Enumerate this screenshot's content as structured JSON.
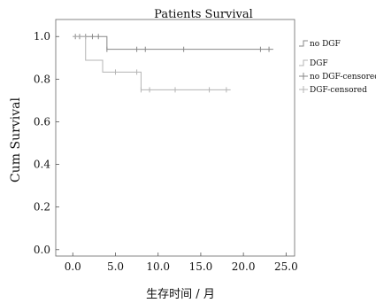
{
  "chart_data": {
    "type": "line",
    "title": "Patients Survival",
    "xlabel": "生存时间 / 月",
    "ylabel": "Cum Survival",
    "xlim": [
      -2,
      26
    ],
    "ylim": [
      -0.03,
      1.08
    ],
    "x_ticks": [
      {
        "value": 0,
        "label": "0.0"
      },
      {
        "value": 5,
        "label": "5.0"
      },
      {
        "value": 10,
        "label": "10.0"
      },
      {
        "value": 15,
        "label": "15.0"
      },
      {
        "value": 20,
        "label": "20.0"
      },
      {
        "value": 25,
        "label": "25.0"
      }
    ],
    "y_ticks": [
      {
        "value": 0,
        "label": "0.0"
      },
      {
        "value": 0.2,
        "label": "0.2"
      },
      {
        "value": 0.4,
        "label": "0.4"
      },
      {
        "value": 0.6,
        "label": "0.6"
      },
      {
        "value": 0.8,
        "label": "0.8"
      },
      {
        "value": 1.0,
        "label": "1.0"
      }
    ],
    "grid": false,
    "legend_position": "right",
    "series": [
      {
        "name": "no DGF",
        "censored_name": "no DGF-censored",
        "color": "#888888",
        "steps": [
          [
            0,
            1.0
          ],
          [
            4,
            0.94
          ],
          [
            23.5,
            0.94
          ]
        ],
        "censored": [
          [
            0.3,
            1.0
          ],
          [
            0.8,
            1.0
          ],
          [
            1.5,
            1.0
          ],
          [
            2.3,
            1.0
          ],
          [
            3.0,
            1.0
          ],
          [
            4.0,
            0.94
          ],
          [
            7.5,
            0.94
          ],
          [
            8.5,
            0.94
          ],
          [
            13.0,
            0.94
          ],
          [
            22.0,
            0.94
          ],
          [
            23.0,
            0.94
          ]
        ]
      },
      {
        "name": "DGF",
        "censored_name": "DGF-censored",
        "color": "#b4b4b4",
        "steps": [
          [
            0,
            1.0
          ],
          [
            1.5,
            0.889
          ],
          [
            3.5,
            0.833
          ],
          [
            8.0,
            0.75
          ],
          [
            18.5,
            0.75
          ]
        ],
        "censored": [
          [
            5.0,
            0.833
          ],
          [
            7.5,
            0.833
          ],
          [
            8.0,
            0.75
          ],
          [
            9.0,
            0.75
          ],
          [
            12.0,
            0.75
          ],
          [
            16.0,
            0.75
          ],
          [
            18.0,
            0.75
          ]
        ]
      }
    ],
    "colors": {
      "axis": "#555555",
      "frame": "#666666"
    }
  }
}
